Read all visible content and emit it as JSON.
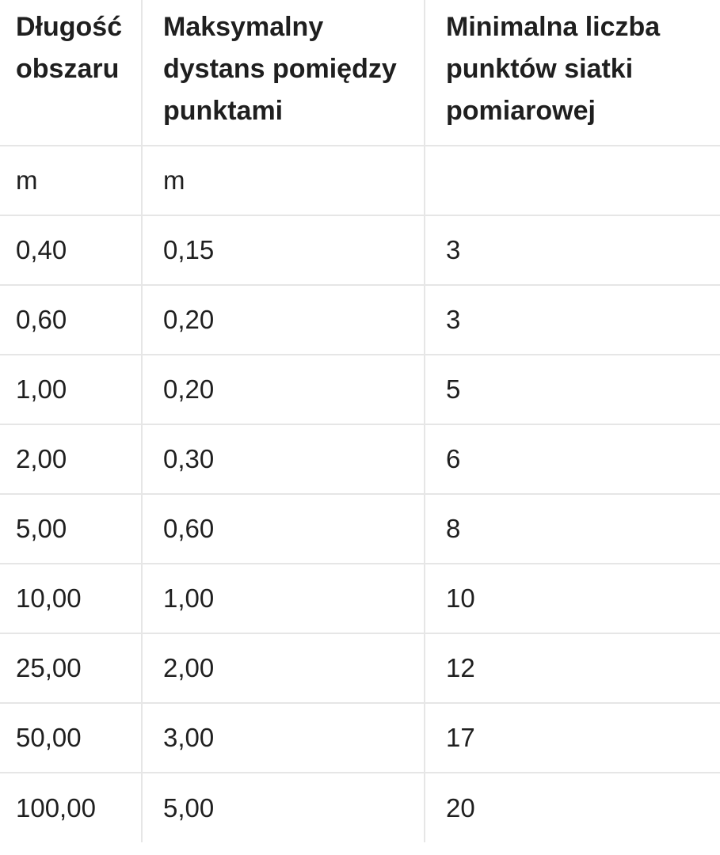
{
  "headers": [
    "Długość obszaru",
    "Maksymalny dystans pomiędzy punktami",
    "Minimalna liczba punktów siatki pomiarowej"
  ],
  "units": [
    "m",
    "m",
    ""
  ],
  "rows": [
    [
      "0,40",
      "0,15",
      "3"
    ],
    [
      "0,60",
      "0,20",
      "3"
    ],
    [
      "1,00",
      "0,20",
      "5"
    ],
    [
      "2,00",
      "0,30",
      "6"
    ],
    [
      "5,00",
      "0,60",
      "8"
    ],
    [
      "10,00",
      "1,00",
      "10"
    ],
    [
      "25,00",
      "2,00",
      "12"
    ],
    [
      "50,00",
      "3,00",
      "17"
    ],
    [
      "100,00",
      "5,00",
      "20"
    ]
  ]
}
